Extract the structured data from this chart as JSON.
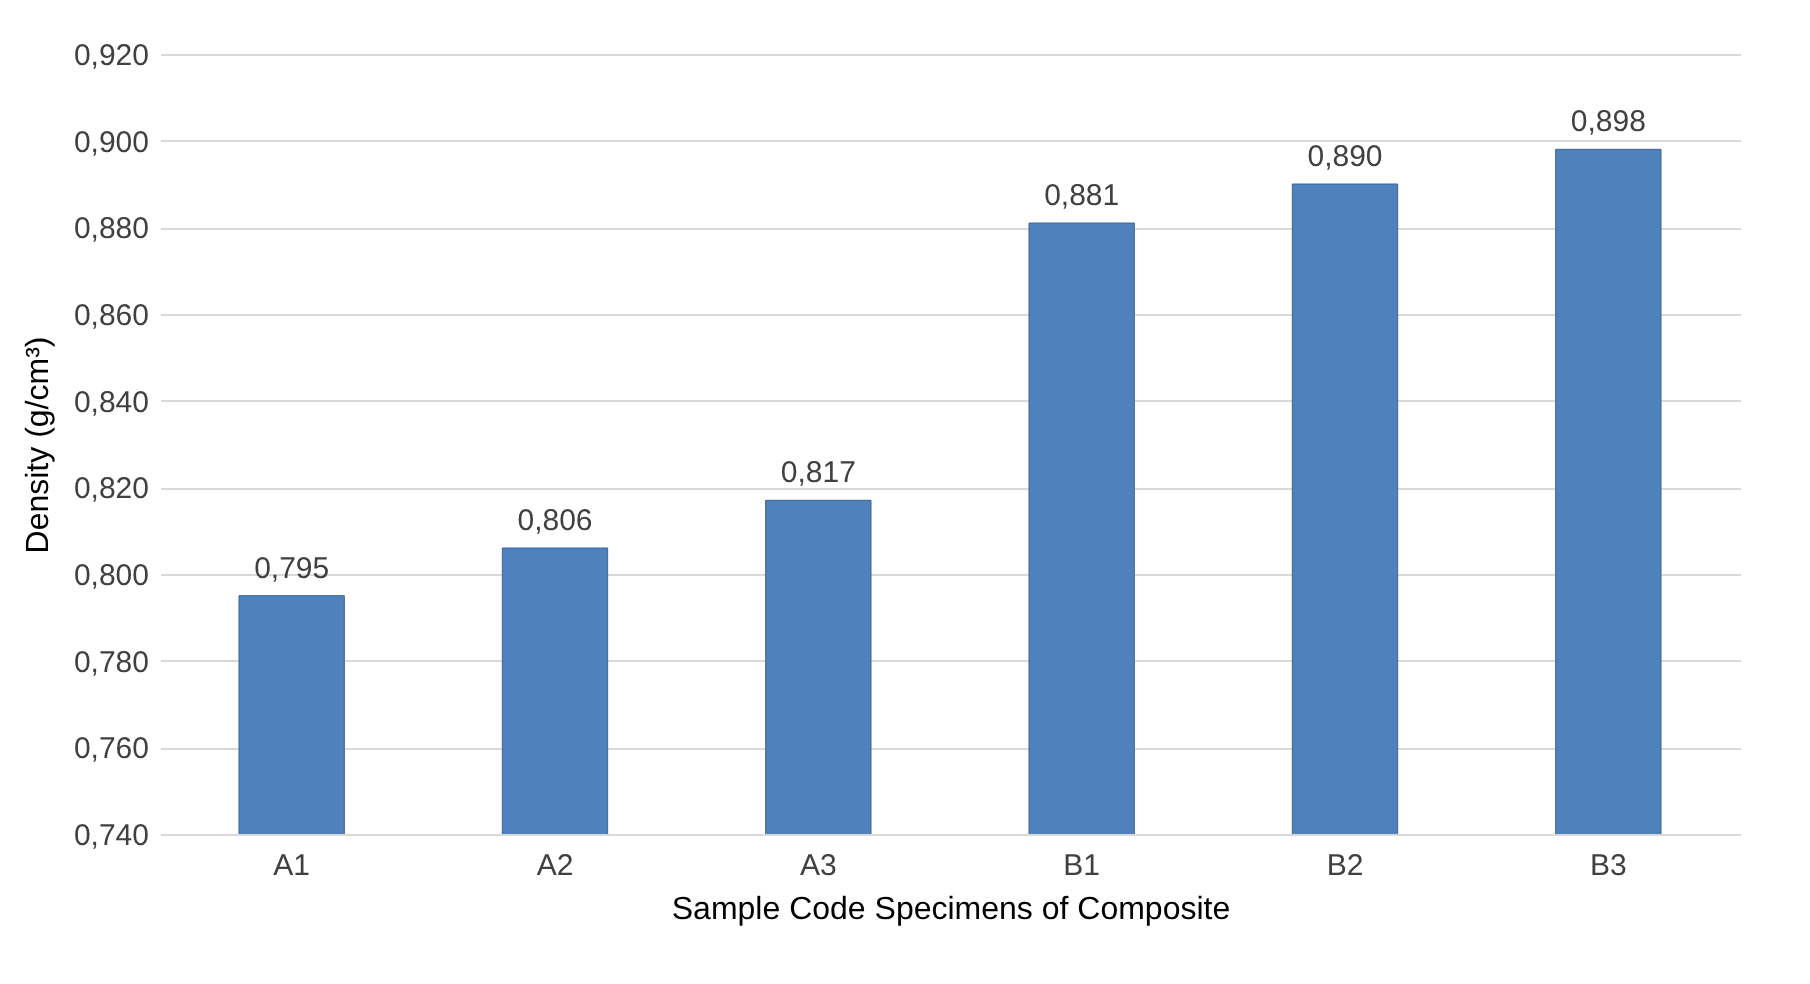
{
  "chart_data": {
    "type": "bar",
    "xlabel": "Sample Code Specimens of Composite",
    "ylabel": "Density  (g/cm³)",
    "categories": [
      "A1",
      "A2",
      "A3",
      "B1",
      "B2",
      "B3"
    ],
    "values": [
      0.795,
      0.806,
      0.817,
      0.881,
      0.89,
      0.898
    ],
    "value_labels": [
      "0,795",
      "0,806",
      "0,817",
      "0,881",
      "0,890",
      "0,898"
    ],
    "color": "#4f81bd",
    "ylim": [
      0.74,
      0.92
    ],
    "yticks": [
      {
        "value": 0.74,
        "label": "0,740"
      },
      {
        "value": 0.76,
        "label": "0,760"
      },
      {
        "value": 0.78,
        "label": "0,780"
      },
      {
        "value": 0.8,
        "label": "0,800"
      },
      {
        "value": 0.82,
        "label": "0,820"
      },
      {
        "value": 0.84,
        "label": "0,840"
      },
      {
        "value": 0.86,
        "label": "0,860"
      },
      {
        "value": 0.88,
        "label": "0,880"
      },
      {
        "value": 0.9,
        "label": "0,900"
      },
      {
        "value": 0.92,
        "label": "0,920"
      }
    ],
    "grid": "y"
  }
}
